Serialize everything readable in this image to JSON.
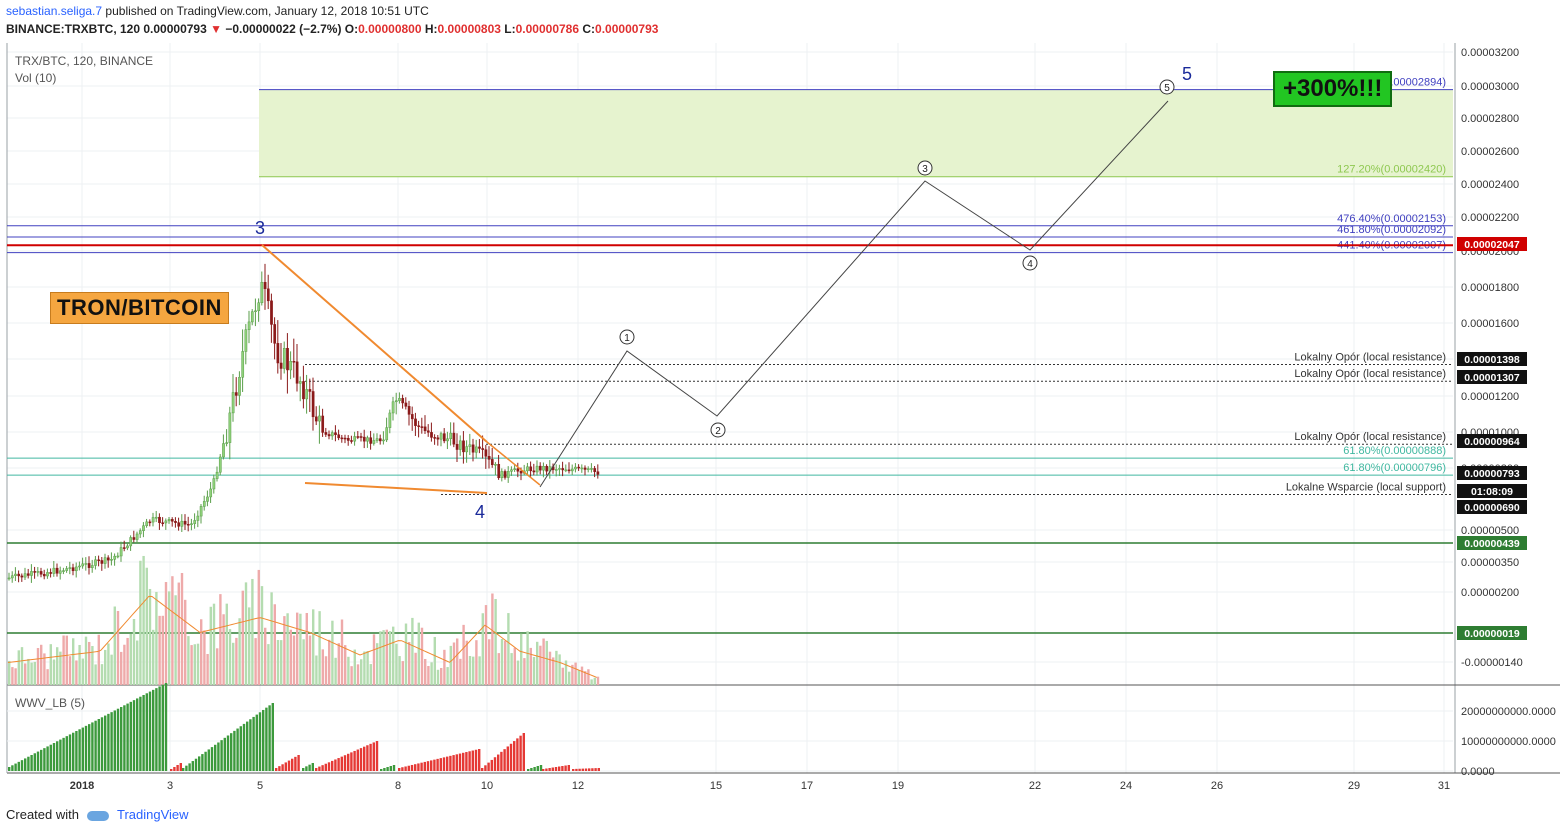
{
  "header": {
    "user": "sebastian.seliga.7",
    "published": "published on TradingView.com, January 12, 2018 10:51 UTC",
    "symbol": "BINANCE:TRXBTC, 120",
    "price": "0.00000793",
    "change": "−0.00000022 (−2.7%)",
    "ohlc": [
      {
        "label": "O:",
        "value": "0.00000800"
      },
      {
        "label": "H:",
        "value": "0.00000803"
      },
      {
        "label": "L:",
        "value": "0.00000786"
      },
      {
        "label": "C:",
        "value": "0.00000793"
      }
    ]
  },
  "legend": {
    "main": "TRX/BTC, 120, BINANCE",
    "vol": "Vol (10)",
    "wwv": "WWV_LB (5)"
  },
  "labels": {
    "tron": "TRON/BITCOIN",
    "target": "+300%!!!"
  },
  "footer": {
    "created": "Created with",
    "brand": "TradingView"
  },
  "colors": {
    "up": "#5a9e4a",
    "down": "#8b1a1a",
    "trend": "#f08a30",
    "fib_blue": "#4040c0",
    "fib_green": "#8ec850",
    "marker_red": "#d00000",
    "wwv_green": "#3c9a3c",
    "wwv_red": "#e53935"
  },
  "chart_data": {
    "type": "candlestick",
    "price_axis": {
      "min": -2.5e-06,
      "max": 3.3e-06,
      "ticks": [
        "0.00003200",
        "0.00003000",
        "0.00002800",
        "0.00002600",
        "0.00002400",
        "0.00002200",
        "0.00002000",
        "0.00001800",
        "0.00001600",
        "0.00001400",
        "0.00001200",
        "0.00001000",
        "0.00000800",
        "0.00000500",
        "0.00000350",
        "0.00000200",
        "-0.00000140"
      ]
    },
    "x_axis": {
      "labels": [
        "2018",
        "3",
        "5",
        "8",
        "10",
        "12",
        "15",
        "17",
        "19",
        "22",
        "24",
        "26",
        "29",
        "31"
      ]
    },
    "levels": [
      {
        "label": "(0.00002894)",
        "value": 2.894e-05,
        "color": "#4040c0"
      },
      {
        "label": "127.20%(0.00002420)",
        "value": 2.42e-05,
        "color": "#8ec850"
      },
      {
        "label": "476.40%(0.00002153)",
        "value": 2.153e-05,
        "color": "#4040c0"
      },
      {
        "label": "461.80%(0.00002092)",
        "value": 2.092e-05,
        "color": "#4040c0"
      },
      {
        "label": "441.40%(0.00002007)",
        "value": 2.007e-05,
        "color": "#4040c0"
      },
      {
        "label": "Lokalny Opór (local resistance)",
        "value": 1.398e-05,
        "color": "#333"
      },
      {
        "label": "Lokalny Opór (local resistance)",
        "value": 1.307e-05,
        "color": "#333"
      },
      {
        "label": "Lokalny Opór (local resistance)",
        "value": 9.64e-06,
        "color": "#333"
      },
      {
        "label": "61.80%(0.00000888)",
        "value": 8.88e-06,
        "color": "#40b8a0"
      },
      {
        "label": "61.80%(0.00000796)",
        "value": 7.96e-06,
        "color": "#40b8a0"
      },
      {
        "label": "Lokalne Wsparcie (local support)",
        "value": 6.9e-06,
        "color": "#333"
      }
    ],
    "price_tags": [
      {
        "label": "0.00002047",
        "style": "red"
      },
      {
        "label": "0.00001398",
        "style": "black"
      },
      {
        "label": "0.00001307",
        "style": "black"
      },
      {
        "label": "0.00000964",
        "style": "black"
      },
      {
        "label": "0.00000793",
        "style": "black"
      },
      {
        "label": "01:08:09",
        "style": "black"
      },
      {
        "label": "0.00000690",
        "style": "black"
      },
      {
        "label": "0.00000439",
        "style": "green"
      },
      {
        "label": "0.00000019",
        "style": "green"
      }
    ],
    "wave_labels": [
      "3",
      "4",
      "5"
    ],
    "projection_points": [
      "1",
      "2",
      "3",
      "4",
      "5"
    ],
    "wwv_axis": {
      "ticks": [
        "20000000000.0000",
        "10000000000.0000",
        "0.0000"
      ]
    }
  }
}
